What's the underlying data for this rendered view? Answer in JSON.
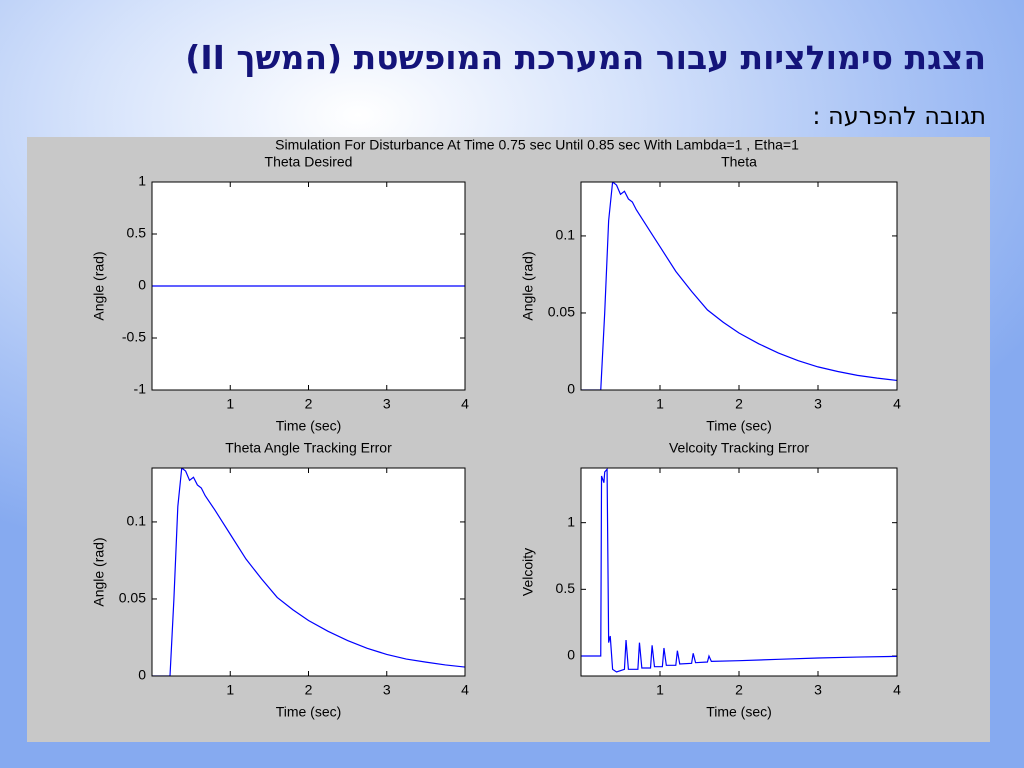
{
  "slide": {
    "title": "הצגת סימולציות עבור המערכת המופשטת (המשך II)",
    "subtitle": "תגובה להפרעה :"
  },
  "figure_title": "Simulation For Disturbance At Time 0.75 sec Until 0.85 sec With Lambda=1 , Etha=1",
  "chart_data": [
    {
      "type": "line",
      "title": "Theta Desired",
      "x_label": "Time (sec)",
      "y_label": "Angle (rad)",
      "color": "#0000ff",
      "x": [
        0,
        4
      ],
      "values": [
        0,
        0
      ],
      "xlim": [
        0,
        4
      ],
      "ylim": [
        -1,
        1
      ],
      "xticks": [
        1,
        2,
        3,
        4
      ],
      "yticks": [
        -1,
        -0.5,
        0,
        0.5,
        1
      ]
    },
    {
      "type": "line",
      "title": "Theta",
      "x_label": "Time (sec)",
      "y_label": "Angle (rad)",
      "color": "#0000ff",
      "x": [
        0,
        0.25,
        0.3,
        0.35,
        0.4,
        0.45,
        0.5,
        0.55,
        0.6,
        0.65,
        0.7,
        0.8,
        0.9,
        1.0,
        1.2,
        1.4,
        1.6,
        1.8,
        2.0,
        2.25,
        2.5,
        2.75,
        3.0,
        3.25,
        3.5,
        3.75,
        4.0
      ],
      "values": [
        0,
        0,
        0.05,
        0.11,
        0.135,
        0.133,
        0.127,
        0.129,
        0.124,
        0.122,
        0.117,
        0.109,
        0.101,
        0.093,
        0.077,
        0.064,
        0.052,
        0.044,
        0.037,
        0.03,
        0.024,
        0.019,
        0.015,
        0.012,
        0.0095,
        0.0077,
        0.0062
      ],
      "xlim": [
        0,
        4
      ],
      "ylim": [
        0,
        0.135
      ],
      "xticks": [
        1,
        2,
        3,
        4
      ],
      "yticks": [
        0,
        0.05,
        0.1
      ]
    },
    {
      "type": "line",
      "title": "Theta Angle Tracking Error",
      "x_label": "Time (sec)",
      "y_label": "Angle (rad)",
      "color": "#0000ff",
      "x": [
        0,
        0.23,
        0.28,
        0.33,
        0.38,
        0.43,
        0.48,
        0.53,
        0.58,
        0.63,
        0.68,
        0.8,
        0.9,
        1.0,
        1.2,
        1.4,
        1.6,
        1.8,
        2.0,
        2.25,
        2.5,
        2.75,
        3.0,
        3.25,
        3.5,
        3.75,
        4.0
      ],
      "values": [
        0,
        0,
        0.05,
        0.11,
        0.135,
        0.133,
        0.127,
        0.129,
        0.124,
        0.122,
        0.117,
        0.108,
        0.1,
        0.092,
        0.076,
        0.063,
        0.051,
        0.043,
        0.036,
        0.029,
        0.023,
        0.018,
        0.014,
        0.011,
        0.009,
        0.0072,
        0.0058
      ],
      "xlim": [
        0,
        4
      ],
      "ylim": [
        0,
        0.135
      ],
      "xticks": [
        1,
        2,
        3,
        4
      ],
      "yticks": [
        0,
        0.05,
        0.1
      ]
    },
    {
      "type": "line",
      "title": "Velcoity Tracking Error",
      "x_label": "Time (sec)",
      "y_label": "Velcoity",
      "color": "#0000ff",
      "x": [
        0,
        0.25,
        0.26,
        0.29,
        0.3,
        0.33,
        0.35,
        0.37,
        0.4,
        0.45,
        0.55,
        0.57,
        0.6,
        0.72,
        0.74,
        0.77,
        0.88,
        0.9,
        0.93,
        1.03,
        1.05,
        1.08,
        1.2,
        1.22,
        1.25,
        1.4,
        1.42,
        1.45,
        1.6,
        1.62,
        1.65,
        2.0,
        2.5,
        3.0,
        3.5,
        4.0
      ],
      "values": [
        0,
        0,
        1.35,
        1.3,
        1.38,
        1.4,
        0.1,
        0.15,
        -0.1,
        -0.12,
        -0.1,
        0.12,
        -0.1,
        -0.1,
        0.1,
        -0.09,
        -0.09,
        0.08,
        -0.08,
        -0.08,
        0.06,
        -0.07,
        -0.07,
        0.04,
        -0.06,
        -0.055,
        0.02,
        -0.05,
        -0.045,
        0.0,
        -0.04,
        -0.035,
        -0.025,
        -0.015,
        -0.008,
        -0.003
      ],
      "xlim": [
        0,
        4
      ],
      "ylim": [
        -0.15,
        1.41
      ],
      "xticks": [
        1,
        2,
        3,
        4
      ],
      "yticks": [
        0,
        0.5,
        1
      ]
    }
  ]
}
